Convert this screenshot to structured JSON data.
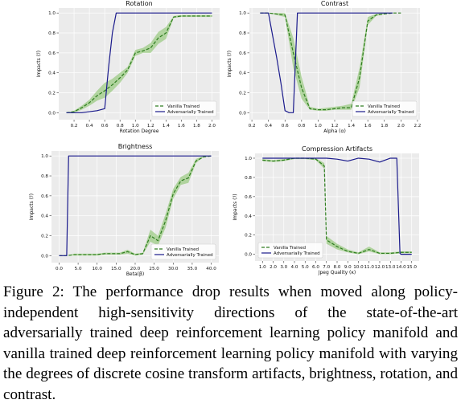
{
  "caption": {
    "label": "Figure 2:",
    "text": "The performance drop results when moved along policy-independent high-sensitivity directions of the state-of-the-art adversarially trained deep reinforcement learning policy manifold and vanilla trained deep reinforcement learning policy manifold with varying the degrees of discrete cosine transform artifacts, brightness, rotation, and contrast."
  },
  "colors": {
    "vanilla": "#2e7d1f",
    "adversarial": "#1a1a8c",
    "band": "#7fbf5f",
    "plot_bg": "#ebebeb",
    "grid": "#ffffff"
  },
  "chart_data": [
    {
      "type": "line",
      "title": "Rotation",
      "xlabel": "Rotation Degree",
      "ylabel": "Impacts (ℐ)",
      "xlim": [
        0.0,
        2.1
      ],
      "ylim": [
        -0.07,
        1.05
      ],
      "xticks": [
        0.2,
        0.4,
        0.6,
        0.8,
        1.0,
        1.2,
        1.4,
        1.6,
        1.8,
        2.0
      ],
      "xtick_labels": [
        "0.2",
        "0.4",
        "0.6",
        "0.8",
        "1.0",
        "1.2",
        "1.4",
        "1.6",
        "1.8",
        "2.0"
      ],
      "yticks": [
        0.0,
        0.2,
        0.4,
        0.6,
        0.8,
        1.0
      ],
      "ytick_labels": [
        "0.0",
        "0.2",
        "0.4",
        "0.6",
        "0.8",
        "1.0"
      ],
      "legend": "bottom-right",
      "series": [
        {
          "name": "Vanilla Trained",
          "style": "dashed",
          "x": [
            0.1,
            0.2,
            0.3,
            0.4,
            0.5,
            0.6,
            0.7,
            0.8,
            0.9,
            1.0,
            1.1,
            1.2,
            1.3,
            1.4,
            1.5,
            1.6,
            1.7,
            1.8,
            1.9,
            2.0
          ],
          "y": [
            0.0,
            0.01,
            0.05,
            0.1,
            0.17,
            0.22,
            0.28,
            0.35,
            0.43,
            0.6,
            0.62,
            0.65,
            0.75,
            0.8,
            0.96,
            0.97,
            0.97,
            0.97,
            0.97,
            0.97
          ],
          "lower": [
            0.0,
            0.0,
            0.03,
            0.07,
            0.12,
            0.15,
            0.22,
            0.3,
            0.4,
            0.57,
            0.6,
            0.6,
            0.69,
            0.74,
            0.95,
            0.96,
            0.96,
            0.96,
            0.96,
            0.96
          ],
          "upper": [
            0.0,
            0.02,
            0.07,
            0.13,
            0.22,
            0.3,
            0.34,
            0.4,
            0.46,
            0.63,
            0.65,
            0.7,
            0.81,
            0.86,
            0.97,
            0.98,
            0.98,
            0.98,
            0.98,
            0.98
          ]
        },
        {
          "name": "Adversarially Trained",
          "style": "solid",
          "x": [
            0.1,
            0.2,
            0.3,
            0.4,
            0.5,
            0.6,
            0.65,
            0.7,
            0.75,
            0.8,
            0.9,
            1.0,
            1.2,
            1.4,
            1.6,
            1.8,
            2.0
          ],
          "y": [
            0.0,
            0.0,
            0.0,
            0.01,
            0.02,
            0.04,
            0.45,
            0.8,
            1.0,
            1.0,
            1.0,
            1.0,
            1.0,
            1.0,
            1.0,
            1.0,
            1.0
          ]
        }
      ]
    },
    {
      "type": "line",
      "title": "Contrast",
      "xlabel": "Alpha (α)",
      "ylabel": "Impacts (ℐ)",
      "xlim": [
        0.17,
        2.23
      ],
      "ylim": [
        -0.07,
        1.05
      ],
      "xticks": [
        0.2,
        0.4,
        0.6,
        0.8,
        1.0,
        1.2,
        1.4,
        1.6,
        1.8,
        2.0,
        2.2
      ],
      "xtick_labels": [
        "0.2",
        "0.4",
        "0.6",
        "0.8",
        "1.0",
        "1.2",
        "1.4",
        "1.6",
        "1.8",
        "2.0",
        "2.2"
      ],
      "yticks": [
        0.0,
        0.2,
        0.4,
        0.6,
        0.8,
        1.0
      ],
      "ytick_labels": [
        "0.0",
        "0.2",
        "0.4",
        "0.6",
        "0.8",
        "1.0"
      ],
      "legend": "bottom-right",
      "series": [
        {
          "name": "Vanilla Trained",
          "style": "dashed",
          "x": [
            0.3,
            0.4,
            0.5,
            0.6,
            0.7,
            0.8,
            0.9,
            1.0,
            1.1,
            1.2,
            1.3,
            1.4,
            1.5,
            1.6,
            1.7,
            1.8,
            1.9,
            2.0
          ],
          "y": [
            1.0,
            1.0,
            0.99,
            0.98,
            0.6,
            0.25,
            0.04,
            0.03,
            0.03,
            0.04,
            0.05,
            0.05,
            0.35,
            0.92,
            0.98,
            0.99,
            1.0,
            1.0
          ],
          "lower": [
            1.0,
            1.0,
            0.98,
            0.96,
            0.45,
            0.14,
            0.03,
            0.02,
            0.02,
            0.03,
            0.03,
            0.03,
            0.25,
            0.88,
            0.97,
            0.99,
            1.0,
            1.0
          ],
          "upper": [
            1.0,
            1.0,
            1.0,
            1.0,
            0.75,
            0.36,
            0.06,
            0.04,
            0.05,
            0.06,
            0.07,
            0.09,
            0.45,
            0.96,
            0.99,
            1.0,
            1.0,
            1.0
          ]
        },
        {
          "name": "Adversarially Trained",
          "style": "solid",
          "x": [
            0.3,
            0.4,
            0.5,
            0.55,
            0.6,
            0.65,
            0.7,
            0.75,
            0.8,
            1.0,
            1.2,
            1.4,
            1.6,
            1.8,
            1.9
          ],
          "y": [
            1.0,
            1.0,
            0.55,
            0.3,
            0.02,
            0.0,
            0.0,
            1.0,
            1.0,
            1.0,
            1.0,
            1.0,
            1.0,
            1.0,
            1.0
          ]
        }
      ]
    },
    {
      "type": "line",
      "title": "Brightness",
      "xlabel": "Beta(β)",
      "ylabel": "Impacts (ℐ)",
      "xlim": [
        -2.0,
        42.0
      ],
      "ylim": [
        -0.07,
        1.05
      ],
      "xticks": [
        0,
        5,
        10,
        15,
        20,
        25,
        30,
        35,
        40
      ],
      "xtick_labels": [
        "0.0",
        "5.0",
        "10.0",
        "15.0",
        "20.0",
        "25.0",
        "30.0",
        "35.0",
        "40.0"
      ],
      "yticks": [
        0.0,
        0.2,
        0.4,
        0.6,
        0.8,
        1.0
      ],
      "ytick_labels": [
        "0.0",
        "0.2",
        "0.4",
        "0.6",
        "0.8",
        "1.0"
      ],
      "legend": "bottom-right",
      "series": [
        {
          "name": "Vanilla Trained",
          "style": "dashed",
          "x": [
            0,
            2,
            4,
            6,
            8,
            10,
            12,
            14,
            16,
            18,
            20,
            22,
            24,
            26,
            28,
            30,
            32,
            34,
            36,
            38,
            40
          ],
          "y": [
            0.0,
            0.0,
            0.01,
            0.01,
            0.01,
            0.01,
            0.02,
            0.02,
            0.02,
            0.04,
            0.01,
            0.02,
            0.2,
            0.15,
            0.35,
            0.62,
            0.75,
            0.78,
            0.95,
            0.99,
            1.0
          ],
          "lower": [
            0.0,
            0.0,
            0.0,
            0.0,
            0.0,
            0.0,
            0.01,
            0.01,
            0.01,
            0.02,
            0.0,
            0.01,
            0.14,
            0.1,
            0.28,
            0.57,
            0.71,
            0.73,
            0.93,
            0.99,
            1.0
          ],
          "upper": [
            0.0,
            0.0,
            0.02,
            0.02,
            0.02,
            0.02,
            0.03,
            0.03,
            0.03,
            0.06,
            0.02,
            0.03,
            0.26,
            0.2,
            0.42,
            0.67,
            0.79,
            0.83,
            0.97,
            1.0,
            1.0
          ]
        },
        {
          "name": "Adversarially Trained",
          "style": "solid",
          "x": [
            0,
            1,
            2,
            2.5,
            3,
            5,
            10,
            15,
            20,
            25,
            30,
            35,
            40
          ],
          "y": [
            0.0,
            0.0,
            0.0,
            1.0,
            1.0,
            1.0,
            1.0,
            1.0,
            1.0,
            1.0,
            1.0,
            1.0,
            1.0
          ]
        }
      ]
    },
    {
      "type": "line",
      "title": "Compression Artifacts",
      "xlabel": "Jpeg Quality (κ)",
      "ylabel": "Impacts (ℐ)",
      "xlim": [
        0.3,
        15.7
      ],
      "ylim": [
        -0.07,
        1.05
      ],
      "xticks": [
        1,
        2,
        3,
        4,
        5,
        6,
        7,
        8,
        9,
        10,
        11,
        12,
        13,
        14,
        15
      ],
      "xtick_labels": [
        "1.0",
        "2.0",
        "3.0",
        "4.0",
        "5.0",
        "6.0",
        "7.0",
        "8.0",
        "9.0",
        "10.0",
        "11.0",
        "12.0",
        "13.0",
        "14.0",
        "15.0"
      ],
      "yticks": [
        0.0,
        0.2,
        0.4,
        0.6,
        0.8,
        1.0
      ],
      "ytick_labels": [
        "0.0",
        "0.2",
        "0.4",
        "0.6",
        "0.8",
        "1.0"
      ],
      "legend": "bottom-left",
      "series": [
        {
          "name": "Vanilla Trained",
          "style": "dashed",
          "x": [
            1,
            2,
            3,
            4,
            5,
            6,
            6.8,
            7,
            8,
            9,
            10,
            11,
            12,
            13,
            14,
            15
          ],
          "y": [
            0.98,
            0.97,
            0.98,
            1.0,
            1.0,
            0.99,
            0.92,
            0.15,
            0.08,
            0.03,
            0.01,
            0.05,
            0.01,
            0.01,
            0.02,
            0.02
          ],
          "lower": [
            0.97,
            0.96,
            0.97,
            0.99,
            0.99,
            0.98,
            0.89,
            0.11,
            0.05,
            0.02,
            0.0,
            0.03,
            0.0,
            0.0,
            0.01,
            0.01
          ],
          "upper": [
            0.99,
            0.98,
            0.99,
            1.0,
            1.0,
            1.0,
            0.95,
            0.19,
            0.11,
            0.05,
            0.02,
            0.08,
            0.02,
            0.02,
            0.03,
            0.03
          ]
        },
        {
          "name": "Adversarially Trained",
          "style": "solid",
          "x": [
            1,
            2,
            3,
            4,
            5,
            6,
            7,
            8,
            9,
            10,
            11,
            12,
            13,
            13.6,
            13.9,
            14,
            15
          ],
          "y": [
            1.0,
            1.0,
            1.0,
            1.0,
            1.0,
            1.0,
            1.0,
            0.99,
            0.97,
            1.0,
            0.99,
            0.96,
            1.0,
            1.0,
            0.01,
            0.0,
            0.0
          ]
        }
      ]
    }
  ]
}
